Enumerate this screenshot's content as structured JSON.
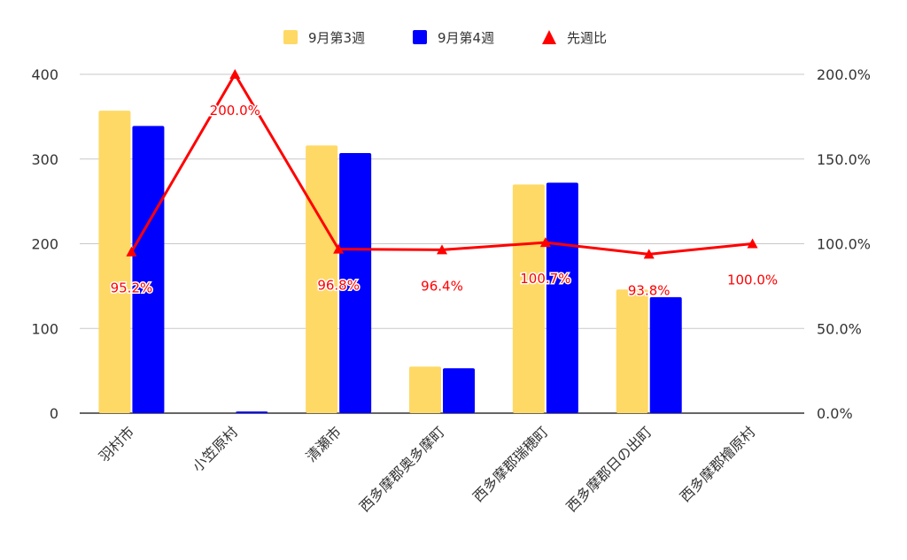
{
  "chart_data": {
    "type": "bar",
    "categories": [
      "羽村市",
      "小笠原村",
      "清瀬市",
      "西多摩郡奥多摩町",
      "西多摩郡瑞穂町",
      "西多摩郡日の出町",
      "西多摩郡檜原村"
    ],
    "series": [
      {
        "name": "9月第3週",
        "type": "bar",
        "axis": "left",
        "color": "#FFD966",
        "values": [
          357,
          0,
          316,
          55,
          270,
          146,
          0
        ]
      },
      {
        "name": "9月第4週",
        "type": "bar",
        "axis": "left",
        "color": "#0000FF",
        "values": [
          339,
          2,
          307,
          53,
          272,
          137,
          0
        ]
      },
      {
        "name": "先週比",
        "type": "line",
        "axis": "right",
        "color": "#FF0000",
        "marker": "triangle",
        "values": [
          95.2,
          200.0,
          96.8,
          96.4,
          100.7,
          93.8,
          100.0
        ],
        "labels": [
          "95.2%",
          "200.0%",
          "96.8%",
          "96.4%",
          "100.7%",
          "93.8%",
          "100.0%"
        ]
      }
    ],
    "y_left": {
      "min": 0,
      "max": 400,
      "ticks": [
        "0",
        "100",
        "200",
        "300",
        "400"
      ]
    },
    "y_right": {
      "min": 0,
      "max": 200,
      "ticks": [
        "0.0%",
        "50.0%",
        "100.0%",
        "150.0%",
        "200.0%"
      ]
    },
    "grid": true,
    "legend_position": "top"
  }
}
